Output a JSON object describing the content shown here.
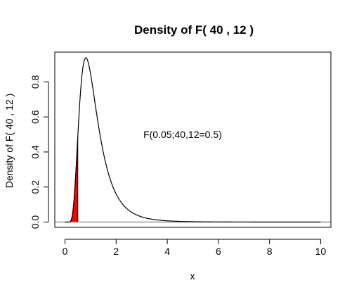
{
  "chart_data": {
    "type": "line",
    "title": "Density of F( 40 , 12 )",
    "xlabel": "x",
    "ylabel": "Density of F( 40 , 12 )",
    "df1": 40,
    "df2": 12,
    "xlim": [
      -0.4,
      10.4
    ],
    "ylim": [
      -0.03,
      0.97
    ],
    "x_ticks": [
      0,
      2,
      4,
      6,
      8,
      10
    ],
    "x_tick_labels": [
      "0",
      "2",
      "4",
      "6",
      "8",
      "10"
    ],
    "y_ticks": [
      0.0,
      0.2,
      0.4,
      0.6,
      0.8
    ],
    "y_tick_labels": [
      "0.0",
      "0.2",
      "0.4",
      "0.6",
      "0.8"
    ],
    "curve_x_range": [
      0,
      10
    ],
    "shaded_x_range": [
      0,
      0.5
    ],
    "shade_color": "#ff0000",
    "baseline_y": 0,
    "annotation": {
      "text": "F(0.05;40,12=0.5)",
      "x": 4.6,
      "y": 0.5
    },
    "grid": false
  }
}
